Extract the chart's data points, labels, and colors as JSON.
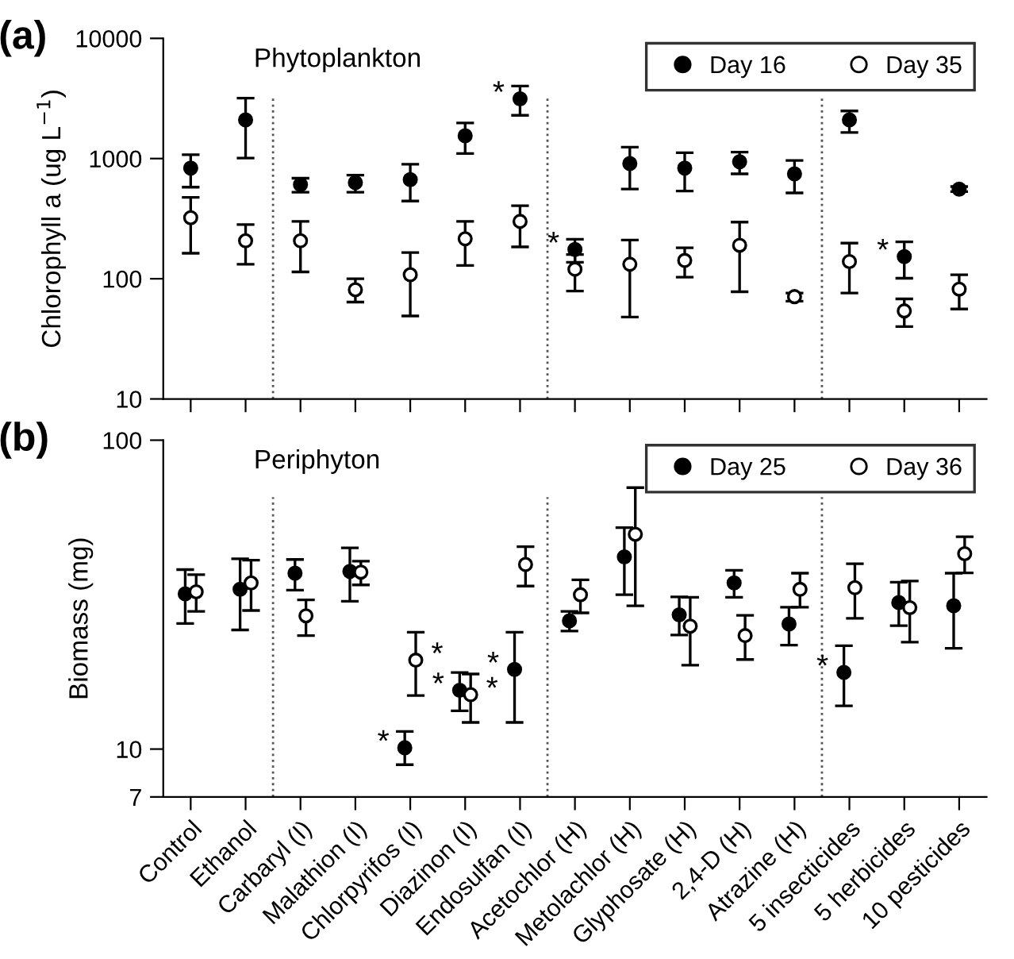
{
  "chart_data": [
    {
      "type": "scatter",
      "title": "(a)",
      "subtitle": "Phytoplankton",
      "ylabel": "Chlorophyll a (ug L$^{−1}$)",
      "categories": [
        "Control",
        "Ethanol",
        "Carbaryl (I)",
        "Malathion (I)",
        "Chlorpyrifos (I)",
        "Diazinon (I)",
        "Endosulfan (I)",
        "Acetochlor (H)",
        "Metolachlor (H)",
        "Glyphosate (H)",
        "2,4-D (H)",
        "Atrazine (H)",
        "5 insecticides",
        "5 herbicides",
        "10 pesticides"
      ],
      "series": [
        {
          "name": "Day 16",
          "color": "#000000",
          "values": [
            834,
            2100,
            607,
            630,
            668,
            1550,
            3140,
            175,
            908,
            834,
            942,
            746,
            2100,
            153,
            557
          ],
          "errors": [
            [
              578,
              1076
            ],
            [
              1010,
              3180
            ],
            [
              525,
              686
            ],
            [
              525,
              728
            ],
            [
              443,
              896
            ],
            [
              1100,
              1980
            ],
            [
              2290,
              4010
            ],
            [
              137,
              213
            ],
            [
              557,
              1245
            ],
            [
              537,
              1117
            ],
            [
              746,
              1130
            ],
            [
              518,
              964
            ],
            [
              1650,
              2490
            ],
            [
              101,
              203
            ],
            [
              531,
              585
            ]
          ]
        },
        {
          "name": "Day 35",
          "color": "#ffffff",
          "values": [
            322,
            207,
            207,
            81,
            108,
            215,
            300,
            120,
            132,
            142,
            190,
            71,
            139,
            54,
            82
          ],
          "errors": [
            [
              163,
              475
            ],
            [
              132,
              282
            ],
            [
              114,
              300
            ],
            [
              64,
              100
            ],
            [
              49,
              165
            ],
            [
              129,
              300
            ],
            [
              184,
              405
            ],
            [
              79,
              159
            ],
            [
              48,
              210
            ],
            [
              103,
              181
            ],
            [
              78,
              296
            ],
            [
              65,
              76
            ],
            [
              76,
              198
            ],
            [
              40,
              68
            ],
            [
              56,
              108
            ]
          ]
        }
      ],
      "log": true,
      "ylim": [
        10,
        10000
      ],
      "yticks": [
        10,
        100,
        1000,
        10000
      ],
      "tick_labels": "y",
      "marker": "circle",
      "grid": false,
      "legend": "top right",
      "annotations": [
        {
          "text": "*",
          "x": "Endosulfan (I)",
          "y": 3140
        },
        {
          "text": "*",
          "x": "Acetochlor (H)",
          "y": 175
        },
        {
          "text": "*",
          "x": "5 herbicides",
          "y": 153
        }
      ]
    },
    {
      "type": "scatter",
      "title": "(b)",
      "subtitle": "Periphyton",
      "ylabel": "Biomass (mg)",
      "categories": [
        "Control",
        "Ethanol",
        "Carbaryl (I)",
        "Malathion (I)",
        "Chlorpyrifos (I)",
        "Diazinon (I)",
        "Endosulfan (I)",
        "Acetochlor (H)",
        "Metolachlor (H)",
        "Glyphosate (H)",
        "2,4-D (H)",
        "Atrazine (H)",
        "5 insecticides",
        "5 herbicides",
        "10 pesticides"
      ],
      "series": [
        {
          "name": "Day 25",
          "color": "#000000",
          "values": [
            31.8,
            32.9,
            37.1,
            37.6,
            10.1,
            15.5,
            18.1,
            26.0,
            41.9,
            27.2,
            34.5,
            25.4,
            17.7,
            29.8,
            29.1
          ],
          "errors": [
            [
              25.5,
              38.1
            ],
            [
              24.3,
              41.3
            ],
            [
              32.7,
              41.1
            ],
            [
              30.1,
              44.8
            ],
            [
              8.9,
              11.4
            ],
            [
              13.3,
              17.7
            ],
            [
              12.2,
              23.9
            ],
            [
              24.1,
              27.9
            ],
            [
              31.6,
              52.1
            ],
            [
              23.4,
              31.1
            ],
            [
              31.0,
              37.9
            ],
            [
              21.7,
              28.8
            ],
            [
              13.8,
              21.6
            ],
            [
              25.1,
              34.7
            ],
            [
              21.2,
              37.1
            ]
          ]
        },
        {
          "name": "Day 36",
          "color": "#ffffff",
          "values": [
            32.3,
            34.5,
            27.0,
            37.4,
            19.4,
            15.0,
            39.6,
            31.6,
            49.6,
            25.0,
            23.3,
            32.9,
            33.3,
            28.7,
            42.9
          ],
          "errors": [
            [
              27.9,
              36.7
            ],
            [
              28.1,
              40.9
            ],
            [
              23.3,
              30.4
            ],
            [
              34.0,
              40.6
            ],
            [
              14.9,
              23.9
            ],
            [
              12.2,
              17.5
            ],
            [
              33.7,
              45.2
            ],
            [
              27.6,
              35.3
            ],
            [
              29.1,
              70.2
            ],
            [
              18.7,
              31.0
            ],
            [
              19.5,
              27.1
            ],
            [
              28.8,
              37.1
            ],
            [
              26.5,
              39.8
            ],
            [
              22.2,
              35.0
            ],
            [
              37.2,
              48.7
            ]
          ]
        }
      ],
      "log": true,
      "ylim": [
        7,
        100
      ],
      "yticks": [
        7,
        10,
        100
      ],
      "marker": "circle",
      "grid": false,
      "legend": "top right",
      "annotations": [
        {
          "text": "*",
          "x": "Chlorpyrifos (I)",
          "y": 10.1
        },
        {
          "text": "*",
          "x": "Chlorpyrifos (I)",
          "y": 19.4
        },
        {
          "text": "*",
          "x": "Diazinon (I)",
          "y": 15.5
        },
        {
          "text": "*",
          "x": "Diazinon (I)",
          "y": 15.0
        },
        {
          "text": "*",
          "x": "Endosulfan (I)",
          "y": 18.1
        },
        {
          "text": "*",
          "x": "5 insecticides",
          "y": 17.7
        }
      ]
    }
  ]
}
